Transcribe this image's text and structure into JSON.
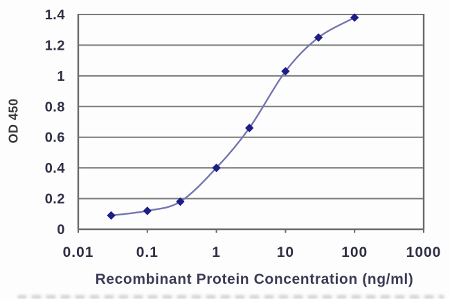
{
  "figure": {
    "background": "#fdfdfd"
  },
  "chart_data": {
    "type": "line",
    "title": "",
    "xlabel": "Recombinant Protein Concentration (ng/ml)",
    "ylabel": "OD 450",
    "xscale": "log",
    "xlim": [
      0.01,
      1000
    ],
    "ylim": [
      0,
      1.4
    ],
    "x": [
      0.03,
      0.1,
      0.3,
      1,
      3,
      10,
      30,
      100
    ],
    "y": [
      0.09,
      0.12,
      0.18,
      0.4,
      0.66,
      1.03,
      1.25,
      1.38
    ],
    "xticks": [
      {
        "v": 0.01,
        "label": "0.01"
      },
      {
        "v": 0.1,
        "label": "0.1"
      },
      {
        "v": 1,
        "label": "1"
      },
      {
        "v": 10,
        "label": "10"
      },
      {
        "v": 100,
        "label": "100"
      },
      {
        "v": 1000,
        "label": "1000"
      }
    ],
    "yticks": [
      {
        "v": 0,
        "label": "0"
      },
      {
        "v": 0.2,
        "label": "0.2"
      },
      {
        "v": 0.4,
        "label": "0.4"
      },
      {
        "v": 0.6,
        "label": "0.6"
      },
      {
        "v": 0.8,
        "label": "0.8"
      },
      {
        "v": 1,
        "label": "1"
      },
      {
        "v": 1.2,
        "label": "1.2"
      },
      {
        "v": 1.4,
        "label": "1.4"
      }
    ],
    "grid": "horizontal",
    "legend": "none",
    "marker": "diamond",
    "colors": {
      "line": "#7474b0",
      "marker": "#1e1e87",
      "grid": "#7b7b7b",
      "axis": "#696969",
      "tick_text": "#2f2f45",
      "label_text": "#3b3b55"
    }
  }
}
